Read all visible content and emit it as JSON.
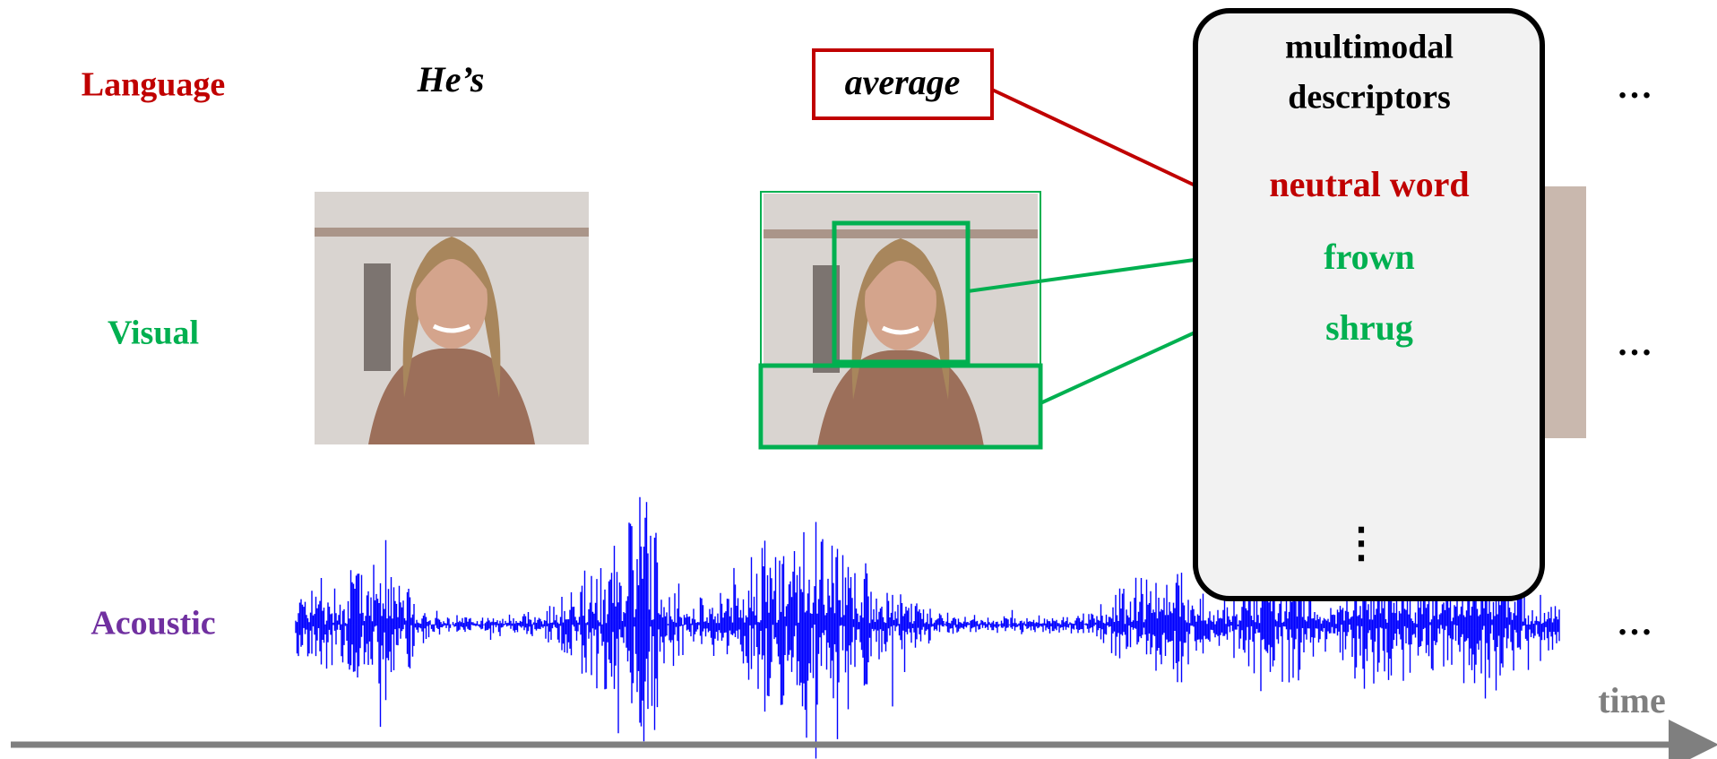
{
  "modalities": {
    "language": "Language",
    "visual": "Visual",
    "acoustic": "Acoustic"
  },
  "words": [
    "He’s",
    "average"
  ],
  "descriptor_box": {
    "title": [
      "multimodal",
      "descriptors"
    ],
    "items": [
      "neutral word",
      "frown",
      "shrug"
    ],
    "more": "⋮"
  },
  "continuation": [
    "…",
    "…",
    "…"
  ],
  "axis": {
    "label": "time"
  }
}
